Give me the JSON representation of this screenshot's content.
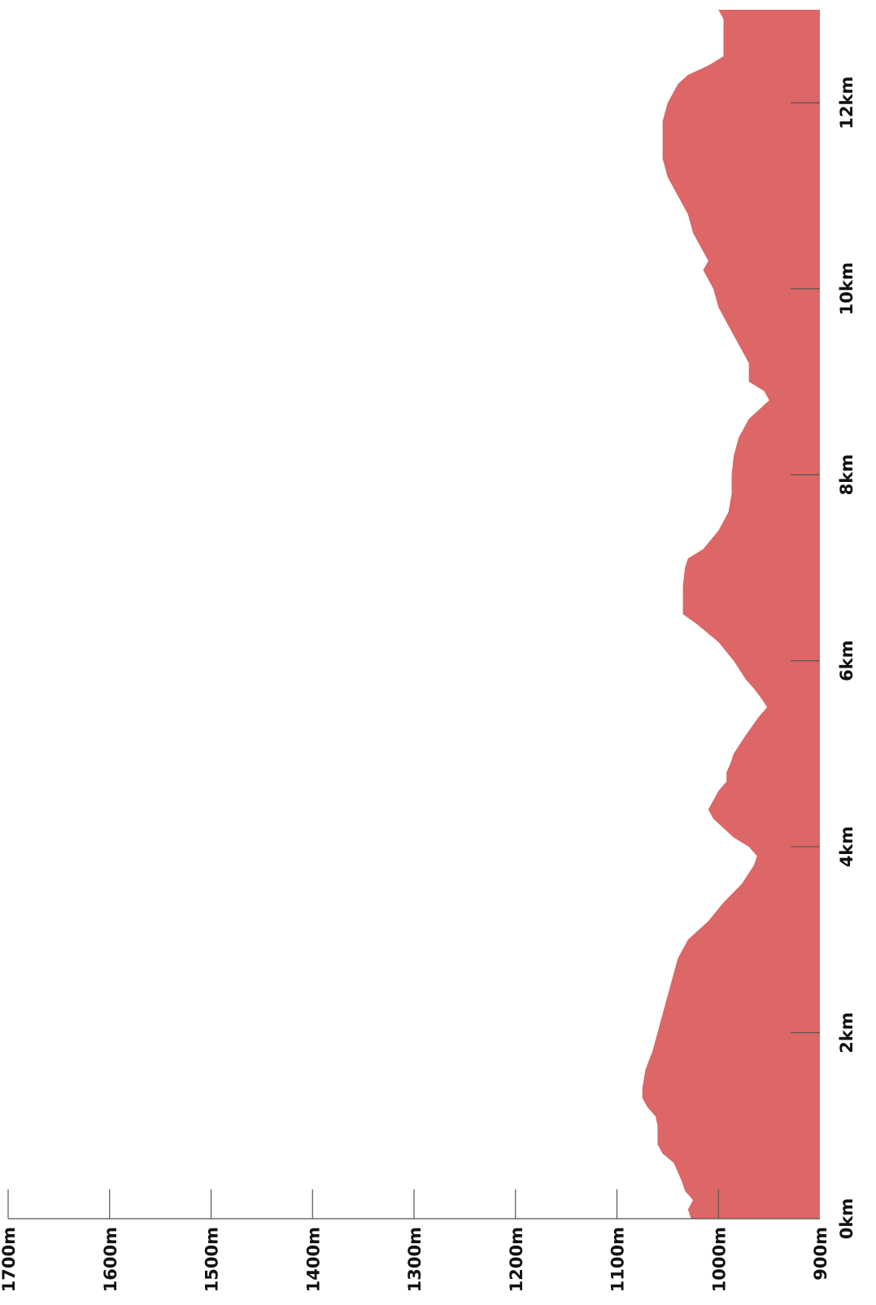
{
  "chart_data": {
    "type": "area",
    "title": "",
    "xlabel": "",
    "ylabel": "",
    "x_unit": "km",
    "y_unit": "m",
    "xlim": [
      0,
      13
    ],
    "ylim": [
      900,
      1700
    ],
    "x_ticks": [
      0,
      2,
      4,
      6,
      8,
      10,
      12
    ],
    "y_ticks": [
      900,
      1000,
      1100,
      1200,
      1300,
      1400,
      1500,
      1600,
      1700
    ],
    "x_tick_labels": [
      "0km",
      "2km",
      "4km",
      "6km",
      "8km",
      "10km",
      "12km"
    ],
    "y_tick_labels": [
      "900m",
      "1000m",
      "1100m",
      "1200m",
      "1300m",
      "1400m",
      "1500m",
      "1600m",
      "1700m"
    ],
    "fill_color": "#dd6666",
    "grid": false,
    "legend": "none",
    "series": [
      {
        "x": [
          0,
          0.1,
          0.2,
          0.3,
          0.4,
          0.5,
          0.6,
          0.7,
          0.8,
          0.9,
          1.0,
          1.1,
          1.2,
          1.3,
          1.4,
          1.6,
          1.8,
          2.0,
          2.2,
          2.4,
          2.6,
          2.8,
          3.0,
          3.2,
          3.4,
          3.6,
          3.8,
          3.9,
          4.0,
          4.1,
          4.2,
          4.3,
          4.4,
          4.5,
          4.6,
          4.7,
          4.8,
          4.9,
          5.0,
          5.2,
          5.4,
          5.5,
          5.6,
          5.7,
          5.8,
          6.0,
          6.2,
          6.4,
          6.5,
          6.6,
          6.8,
          7.0,
          7.1,
          7.2,
          7.4,
          7.6,
          7.8,
          8.0,
          8.2,
          8.4,
          8.6,
          8.7,
          8.8,
          8.9,
          9.0,
          9.2,
          9.4,
          9.6,
          9.8,
          10.0,
          10.1,
          10.2,
          10.3,
          10.4,
          10.6,
          10.8,
          11.0,
          11.2,
          11.4,
          11.6,
          11.8,
          12.0,
          12.2,
          12.3,
          12.4,
          12.5,
          12.6,
          12.7,
          12.8,
          12.9,
          13.0
        ],
        "y": [
          1027,
          1030,
          1025,
          1033,
          1036,
          1040,
          1044,
          1055,
          1060,
          1060,
          1060,
          1062,
          1070,
          1075,
          1075,
          1072,
          1065,
          1060,
          1055,
          1050,
          1045,
          1040,
          1030,
          1010,
          995,
          977,
          965,
          962,
          970,
          985,
          995,
          1005,
          1010,
          1005,
          1000,
          992,
          992,
          988,
          985,
          973,
          960,
          952,
          958,
          965,
          973,
          985,
          1000,
          1022,
          1035,
          1035,
          1035,
          1033,
          1030,
          1015,
          1000,
          990,
          987,
          987,
          985,
          980,
          970,
          960,
          950,
          955,
          970,
          970,
          980,
          990,
          1000,
          1005,
          1010,
          1015,
          1010,
          1015,
          1025,
          1030,
          1040,
          1050,
          1055,
          1055,
          1055,
          1050,
          1040,
          1030,
          1010,
          995,
          995,
          995,
          995,
          995,
          1000
        ]
      }
    ]
  }
}
